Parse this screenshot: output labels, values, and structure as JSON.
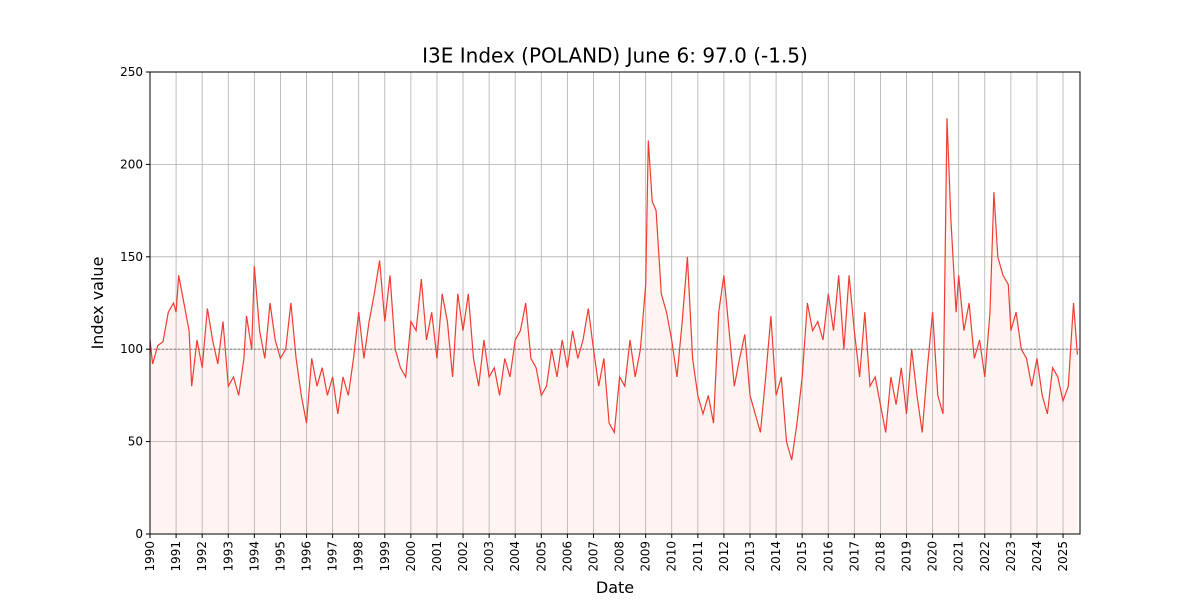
{
  "chart_data": {
    "type": "line",
    "title": "I3E Index (POLAND) June 6: 97.0 (-1.5)",
    "x_label": "Date",
    "y_label": "Index value",
    "x": [
      1990.0,
      1990.1,
      1990.3,
      1990.5,
      1990.7,
      1990.9,
      1991.0,
      1991.1,
      1991.3,
      1991.5,
      1991.6,
      1991.8,
      1992.0,
      1992.2,
      1992.4,
      1992.6,
      1992.8,
      1993.0,
      1993.2,
      1993.4,
      1993.6,
      1993.7,
      1993.9,
      1994.0,
      1994.2,
      1994.4,
      1994.6,
      1994.8,
      1995.0,
      1995.2,
      1995.4,
      1995.6,
      1995.8,
      1996.0,
      1996.2,
      1996.4,
      1996.6,
      1996.8,
      1997.0,
      1997.2,
      1997.4,
      1997.6,
      1997.8,
      1998.0,
      1998.2,
      1998.4,
      1998.6,
      1998.8,
      1999.0,
      1999.2,
      1999.4,
      1999.6,
      1999.8,
      2000.0,
      2000.2,
      2000.4,
      2000.6,
      2000.8,
      2001.0,
      2001.2,
      2001.4,
      2001.6,
      2001.8,
      2002.0,
      2002.2,
      2002.4,
      2002.6,
      2002.8,
      2003.0,
      2003.2,
      2003.4,
      2003.6,
      2003.8,
      2004.0,
      2004.2,
      2004.4,
      2004.6,
      2004.8,
      2005.0,
      2005.2,
      2005.4,
      2005.6,
      2005.8,
      2006.0,
      2006.2,
      2006.4,
      2006.6,
      2006.8,
      2007.0,
      2007.2,
      2007.4,
      2007.6,
      2007.8,
      2008.0,
      2008.2,
      2008.4,
      2008.6,
      2008.8,
      2009.0,
      2009.1,
      2009.25,
      2009.4,
      2009.6,
      2009.8,
      2010.0,
      2010.2,
      2010.4,
      2010.6,
      2010.8,
      2011.0,
      2011.2,
      2011.4,
      2011.6,
      2011.8,
      2012.0,
      2012.2,
      2012.4,
      2012.6,
      2012.8,
      2013.0,
      2013.2,
      2013.4,
      2013.6,
      2013.8,
      2014.0,
      2014.2,
      2014.4,
      2014.6,
      2014.8,
      2015.0,
      2015.2,
      2015.4,
      2015.6,
      2015.8,
      2016.0,
      2016.2,
      2016.4,
      2016.6,
      2016.8,
      2017.0,
      2017.2,
      2017.4,
      2017.6,
      2017.8,
      2018.0,
      2018.2,
      2018.4,
      2018.6,
      2018.8,
      2019.0,
      2019.2,
      2019.4,
      2019.6,
      2019.8,
      2020.0,
      2020.2,
      2020.4,
      2020.55,
      2020.7,
      2020.9,
      2021.0,
      2021.2,
      2021.4,
      2021.6,
      2021.8,
      2022.0,
      2022.2,
      2022.35,
      2022.5,
      2022.7,
      2022.9,
      2023.0,
      2023.2,
      2023.4,
      2023.6,
      2023.8,
      2024.0,
      2024.2,
      2024.4,
      2024.6,
      2024.8,
      2025.0,
      2025.2,
      2025.4,
      2025.55
    ],
    "series": [
      {
        "name": "I3E Index",
        "color": "#f03c32",
        "fill_color": "#fff4f2",
        "values": [
          105,
          92,
          102,
          104,
          120,
          125,
          120,
          140,
          125,
          110,
          80,
          105,
          90,
          122,
          105,
          92,
          115,
          80,
          85,
          75,
          95,
          118,
          100,
          145,
          110,
          95,
          125,
          105,
          95,
          100,
          125,
          95,
          75,
          60,
          95,
          80,
          90,
          75,
          85,
          65,
          85,
          75,
          95,
          120,
          95,
          115,
          130,
          148,
          115,
          140,
          100,
          90,
          85,
          115,
          110,
          138,
          105,
          120,
          95,
          130,
          115,
          85,
          130,
          110,
          130,
          95,
          80,
          105,
          85,
          90,
          75,
          95,
          85,
          105,
          110,
          125,
          95,
          90,
          75,
          80,
          100,
          85,
          105,
          90,
          110,
          95,
          105,
          122,
          100,
          80,
          95,
          60,
          55,
          85,
          80,
          105,
          85,
          100,
          135,
          213,
          180,
          175,
          130,
          120,
          105,
          85,
          115,
          150,
          95,
          75,
          65,
          75,
          60,
          120,
          140,
          110,
          80,
          95,
          108,
          75,
          65,
          55,
          85,
          118,
          75,
          85,
          50,
          40,
          60,
          85,
          125,
          110,
          115,
          105,
          130,
          110,
          140,
          100,
          140,
          110,
          85,
          120,
          80,
          85,
          70,
          55,
          85,
          70,
          90,
          65,
          100,
          75,
          55,
          90,
          120,
          75,
          65,
          225,
          170,
          120,
          140,
          110,
          125,
          95,
          105,
          85,
          120,
          185,
          150,
          140,
          135,
          110,
          120,
          100,
          95,
          80,
          95,
          75,
          65,
          90,
          85,
          72,
          80,
          125,
          97
        ]
      }
    ],
    "reference_line": 100,
    "reference_color": "#808080",
    "xlim": [
      1990,
      2025.65
    ],
    "ylim": [
      0,
      250
    ],
    "xticks": [
      1990,
      1991,
      1992,
      1993,
      1994,
      1995,
      1996,
      1997,
      1998,
      1999,
      2000,
      2001,
      2002,
      2003,
      2004,
      2005,
      2006,
      2007,
      2008,
      2009,
      2010,
      2011,
      2012,
      2013,
      2014,
      2015,
      2016,
      2017,
      2018,
      2019,
      2020,
      2021,
      2022,
      2023,
      2024,
      2025
    ],
    "yticks": [
      0,
      50,
      100,
      150,
      200,
      250
    ],
    "grid": true
  }
}
